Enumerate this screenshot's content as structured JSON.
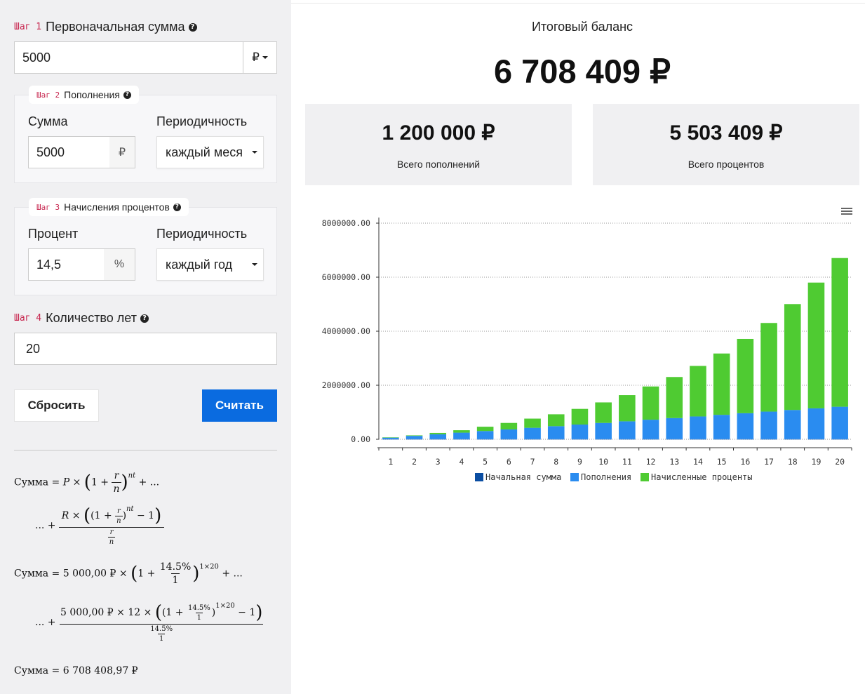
{
  "step1": {
    "code": "Шаг 1",
    "title": "Первоначальная сумма",
    "value": "5000",
    "currency": "₽"
  },
  "step2": {
    "code": "Шаг 2",
    "title": "Пополнения",
    "sum_label": "Сумма",
    "sum_value": "5000",
    "sum_unit": "₽",
    "period_label": "Периодичность",
    "period_value": "каждый месяц"
  },
  "step3": {
    "code": "Шаг 3",
    "title": "Начисления процентов",
    "pct_label": "Процент",
    "pct_value": "14,5",
    "pct_unit": "%",
    "period_label": "Периодичность",
    "period_value": "каждый год"
  },
  "step4": {
    "code": "Шаг 4",
    "title": "Количество лет",
    "value": "20"
  },
  "buttons": {
    "reset": "Сбросить",
    "calc": "Считать"
  },
  "formula": {
    "sum_word": "Сумма",
    "ellipsis": "...",
    "p_amount": "5 000,00 ₽",
    "r_amount": "5 000,00 ₽",
    "r_count": "12",
    "rate": "14.5%",
    "n": "1",
    "exponent": "1×20",
    "result": "6 708 408,97 ₽"
  },
  "summary": {
    "balance_label": "Итоговый баланс",
    "balance_value": "6 708 409 ₽",
    "deposits_value": "1 200 000 ₽",
    "deposits_label": "Всего пополнений",
    "interest_value": "5 503 409 ₽",
    "interest_label": "Всего процентов"
  },
  "chart_data": {
    "type": "bar",
    "stacked": true,
    "x": [
      1,
      2,
      3,
      4,
      5,
      6,
      7,
      8,
      9,
      10,
      11,
      12,
      13,
      14,
      15,
      16,
      17,
      18,
      19,
      20
    ],
    "ylim": [
      0,
      8000000
    ],
    "yticks": [
      "0.00",
      "2000000.00",
      "4000000.00",
      "6000000.00",
      "8000000.00"
    ],
    "grid": true,
    "legend_position": "bottom",
    "series": [
      {
        "name": "Начальная сумма",
        "color": "#0b4ea2",
        "values": [
          5000,
          5000,
          5000,
          5000,
          5000,
          5000,
          5000,
          5000,
          5000,
          5000,
          5000,
          5000,
          5000,
          5000,
          5000,
          5000,
          5000,
          5000,
          5000,
          5000
        ]
      },
      {
        "name": "Пополнения",
        "color": "#2a8cf0",
        "values": [
          60000,
          120000,
          180000,
          240000,
          300000,
          360000,
          420000,
          480000,
          540000,
          600000,
          660000,
          720000,
          780000,
          840000,
          900000,
          960000,
          1020000,
          1080000,
          1140000,
          1200000
        ]
      },
      {
        "name": "Начисленные проценты",
        "color": "#4fcb32",
        "values": [
          5000,
          20000,
          50000,
          90000,
          160000,
          240000,
          340000,
          440000,
          580000,
          760000,
          970000,
          1230000,
          1520000,
          1870000,
          2270000,
          2750000,
          3280000,
          3920000,
          4655000,
          5503409
        ]
      }
    ]
  }
}
